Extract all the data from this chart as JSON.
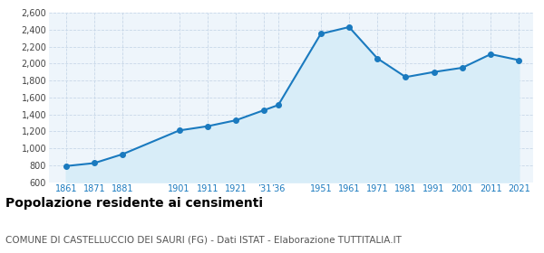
{
  "years": [
    1861,
    1871,
    1881,
    1901,
    1911,
    1921,
    1931,
    1936,
    1951,
    1961,
    1971,
    1981,
    1991,
    2001,
    2011,
    2021
  ],
  "population": [
    790,
    825,
    930,
    1210,
    1260,
    1330,
    1450,
    1510,
    2350,
    2430,
    2060,
    1840,
    1900,
    1950,
    2110,
    2040
  ],
  "line_color": "#1a7abf",
  "fill_color": "#d8edf8",
  "marker_color": "#1a7abf",
  "bg_color": "#eef5fb",
  "grid_color": "#c8d8e8",
  "ylim": [
    600,
    2600
  ],
  "yticks": [
    600,
    800,
    1000,
    1200,
    1400,
    1600,
    1800,
    2000,
    2200,
    2400,
    2600
  ],
  "title": "Popolazione residente ai censimenti",
  "subtitle": "COMUNE DI CASTELLUCCIO DEI SAURI (FG) - Dati ISTAT - Elaborazione TUTTITALIA.IT",
  "title_fontsize": 10,
  "subtitle_fontsize": 7.5
}
